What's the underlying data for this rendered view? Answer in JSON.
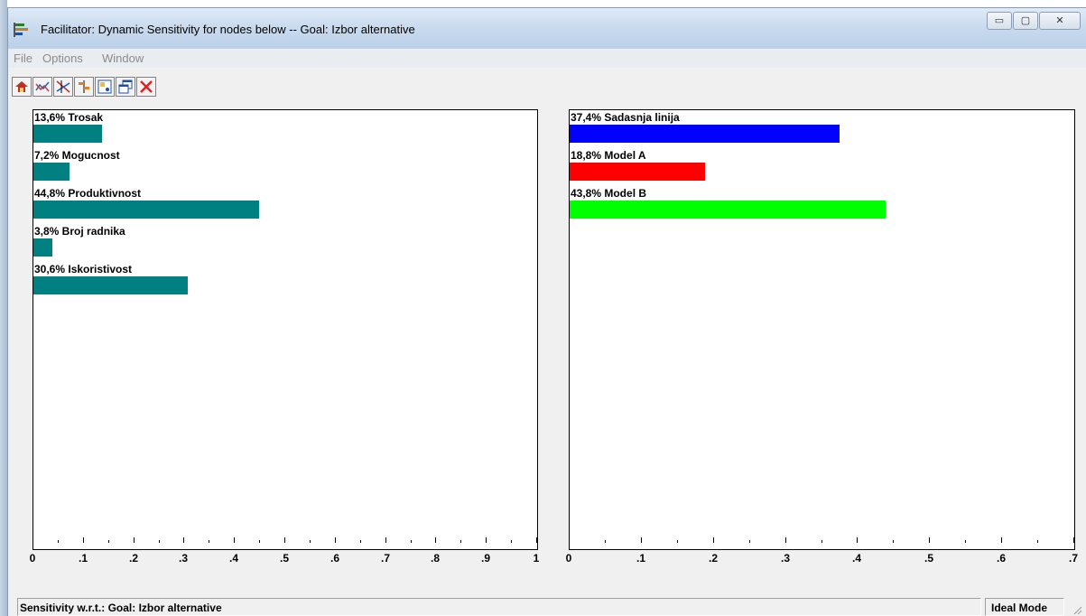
{
  "window": {
    "title": "Facilitator: Dynamic Sensitivity for nodes below -- Goal: Izbor alternative",
    "caption_buttons": {
      "minimize": "▭",
      "maximize": "▢",
      "close": "✕"
    }
  },
  "menu": [
    {
      "label": "File"
    },
    {
      "label": "Options"
    },
    {
      "label": "Window"
    }
  ],
  "toolbar": [
    {
      "icon": "home-icon"
    },
    {
      "icon": "performance-chart-icon"
    },
    {
      "icon": "gradient-chart-icon"
    },
    {
      "icon": "head-to-head-icon"
    },
    {
      "icon": "two-d-plot-icon"
    },
    {
      "icon": "restore-windows-icon"
    },
    {
      "icon": "close-icon"
    }
  ],
  "chart_data": [
    {
      "type": "bar",
      "orientation": "horizontal",
      "categories": [
        "13,6% Trosak",
        "7,2% Mogucnost",
        "44,8% Produktivnost",
        "3,8% Broj radnika",
        "30,6% Iskoristivost"
      ],
      "values": [
        0.136,
        0.072,
        0.448,
        0.038,
        0.306
      ],
      "colors": [
        "#008080",
        "#008080",
        "#008080",
        "#008080",
        "#008080"
      ],
      "xlim": [
        0,
        1
      ],
      "ticks": [
        "0",
        ".1",
        ".2",
        ".3",
        ".4",
        ".5",
        ".6",
        ".7",
        ".8",
        ".9",
        "1"
      ]
    },
    {
      "type": "bar",
      "orientation": "horizontal",
      "categories": [
        "37,4% Sadasnja linija",
        "18,8% Model A",
        "43,8% Model B"
      ],
      "values": [
        0.374,
        0.188,
        0.438
      ],
      "colors": [
        "#0000ff",
        "#ff0000",
        "#00ff00"
      ],
      "xlim": [
        0,
        0.7
      ],
      "ticks": [
        "0",
        ".1",
        ".2",
        ".3",
        ".4",
        ".5",
        ".6",
        ".7"
      ]
    }
  ],
  "status": {
    "left": "Sensitivity w.r.t.: Goal: Izbor alternative",
    "right": "Ideal Mode"
  }
}
